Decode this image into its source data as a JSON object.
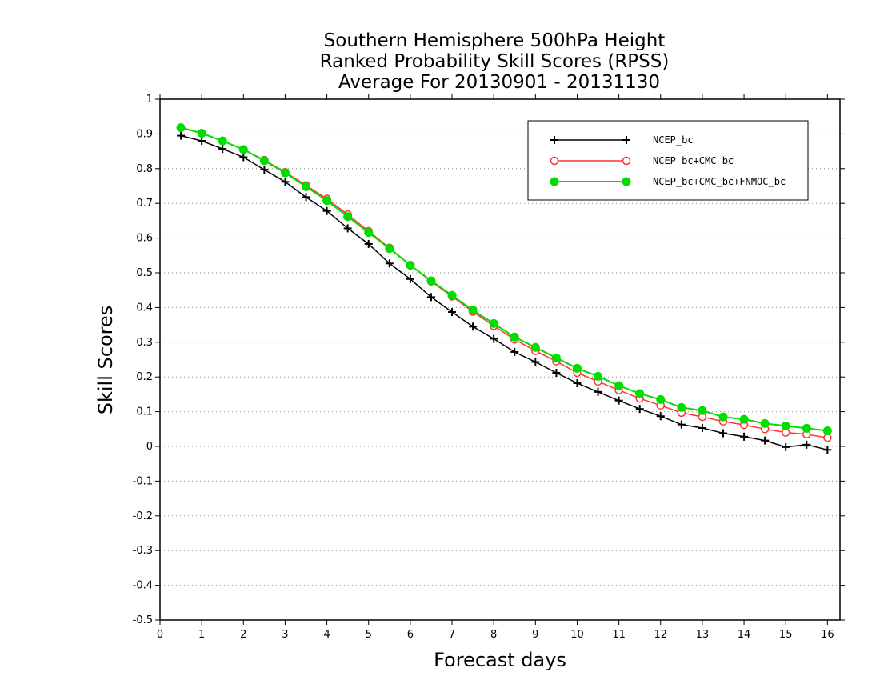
{
  "chart_data": {
    "type": "line",
    "title_lines": [
      "Southern Hemisphere 500hPa Height",
      "Ranked Probability Skill Scores (RPSS)",
      "Average For 20130901 - 20131130"
    ],
    "xlabel": "Forecast days",
    "ylabel": "Skill Scores",
    "xlim": [
      0,
      16.3
    ],
    "ylim": [
      -0.5,
      1
    ],
    "xticks": [
      "0",
      "1",
      "2",
      "3",
      "4",
      "5",
      "6",
      "7",
      "8",
      "9",
      "10",
      "11",
      "12",
      "13",
      "14",
      "15",
      "16"
    ],
    "yticks": [
      "1",
      "0.9",
      "0.8",
      "0.7",
      "0.6",
      "0.5",
      "0.4",
      "0.3",
      "0.2",
      "0.1",
      "0",
      "-0.1",
      "-0.2",
      "-0.3",
      "-0.4",
      "-0.5"
    ],
    "grid": "dotted horizontal",
    "legend_position": "top-right",
    "x": [
      0.5,
      1,
      1.5,
      2,
      2.5,
      3,
      3.5,
      4,
      4.5,
      5,
      5.5,
      6,
      6.5,
      7,
      7.5,
      8,
      8.5,
      9,
      9.5,
      10,
      10.5,
      11,
      11.5,
      12,
      12.5,
      13,
      13.5,
      14,
      14.5,
      15,
      15.5,
      16
    ],
    "series": [
      {
        "name": "NCEP_bc",
        "color": "#000000",
        "marker": "plus",
        "values": [
          0.895,
          0.88,
          0.857,
          0.833,
          0.797,
          0.762,
          0.718,
          0.678,
          0.628,
          0.583,
          0.527,
          0.482,
          0.43,
          0.387,
          0.345,
          0.31,
          0.272,
          0.243,
          0.212,
          0.182,
          0.157,
          0.132,
          0.108,
          0.087,
          0.063,
          0.053,
          0.038,
          0.028,
          0.017,
          -0.002,
          0.005,
          -0.01
        ]
      },
      {
        "name": "NCEP_bc+CMC_bc",
        "color": "#ff3333",
        "marker": "open-circle",
        "values": [
          0.918,
          0.902,
          0.88,
          0.855,
          0.825,
          0.79,
          0.752,
          0.713,
          0.668,
          0.62,
          0.572,
          0.522,
          0.475,
          0.432,
          0.388,
          0.347,
          0.308,
          0.275,
          0.245,
          0.212,
          0.187,
          0.162,
          0.138,
          0.118,
          0.097,
          0.085,
          0.072,
          0.062,
          0.05,
          0.04,
          0.035,
          0.025
        ]
      },
      {
        "name": "NCEP_bc+CMC_bc+FNMOC_bc",
        "color": "#00dd00",
        "marker": "filled-circle",
        "values": [
          0.918,
          0.902,
          0.88,
          0.855,
          0.823,
          0.788,
          0.748,
          0.708,
          0.662,
          0.616,
          0.57,
          0.522,
          0.477,
          0.435,
          0.392,
          0.354,
          0.315,
          0.285,
          0.255,
          0.225,
          0.202,
          0.175,
          0.152,
          0.135,
          0.112,
          0.103,
          0.085,
          0.078,
          0.066,
          0.059,
          0.052,
          0.045
        ]
      }
    ]
  }
}
